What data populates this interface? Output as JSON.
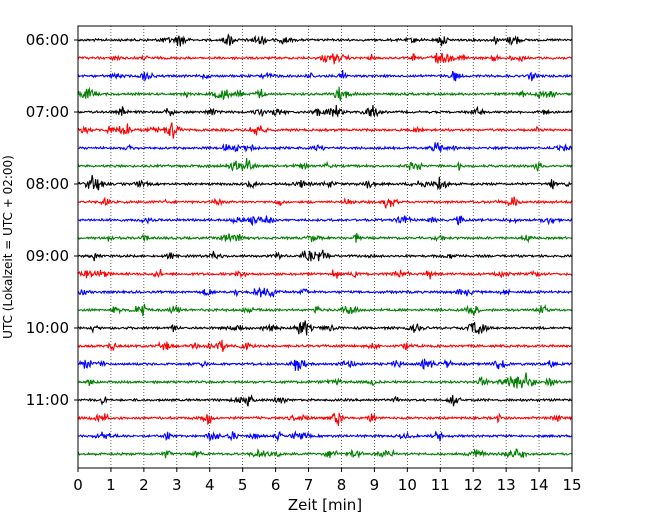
{
  "chart_data": {
    "type": "line",
    "xlabel": "Zeit  [min]",
    "ylabel": "UTC (Lokalzeit = UTC + 02:00)",
    "xlim": [
      0,
      15
    ],
    "x_ticks": [
      "0",
      "1",
      "2",
      "3",
      "4",
      "5",
      "6",
      "7",
      "8",
      "9",
      "10",
      "11",
      "12",
      "13",
      "14",
      "15"
    ],
    "y_ticks": [
      "06:00",
      "07:00",
      "08:00",
      "09:00",
      "10:00",
      "11:00"
    ],
    "grid": "vertical-dotted",
    "trace_colors": [
      "#000000",
      "#ff0000",
      "#0000ff",
      "#007f00"
    ],
    "traces": [
      {
        "start": "06:00",
        "color": "#000000"
      },
      {
        "start": "06:15",
        "color": "#ff0000"
      },
      {
        "start": "06:30",
        "color": "#0000ff"
      },
      {
        "start": "06:45",
        "color": "#007f00"
      },
      {
        "start": "07:00",
        "color": "#000000"
      },
      {
        "start": "07:15",
        "color": "#ff0000"
      },
      {
        "start": "07:30",
        "color": "#0000ff"
      },
      {
        "start": "07:45",
        "color": "#007f00"
      },
      {
        "start": "08:00",
        "color": "#000000"
      },
      {
        "start": "08:15",
        "color": "#ff0000"
      },
      {
        "start": "08:30",
        "color": "#0000ff"
      },
      {
        "start": "08:45",
        "color": "#007f00"
      },
      {
        "start": "09:00",
        "color": "#000000"
      },
      {
        "start": "09:15",
        "color": "#ff0000"
      },
      {
        "start": "09:30",
        "color": "#0000ff"
      },
      {
        "start": "09:45",
        "color": "#007f00"
      },
      {
        "start": "10:00",
        "color": "#000000"
      },
      {
        "start": "10:15",
        "color": "#ff0000"
      },
      {
        "start": "10:30",
        "color": "#0000ff"
      },
      {
        "start": "10:45",
        "color": "#007f00"
      },
      {
        "start": "11:00",
        "color": "#000000"
      },
      {
        "start": "11:15",
        "color": "#ff0000"
      },
      {
        "start": "11:30",
        "color": "#0000ff"
      },
      {
        "start": "11:45",
        "color": "#007f00"
      }
    ]
  }
}
